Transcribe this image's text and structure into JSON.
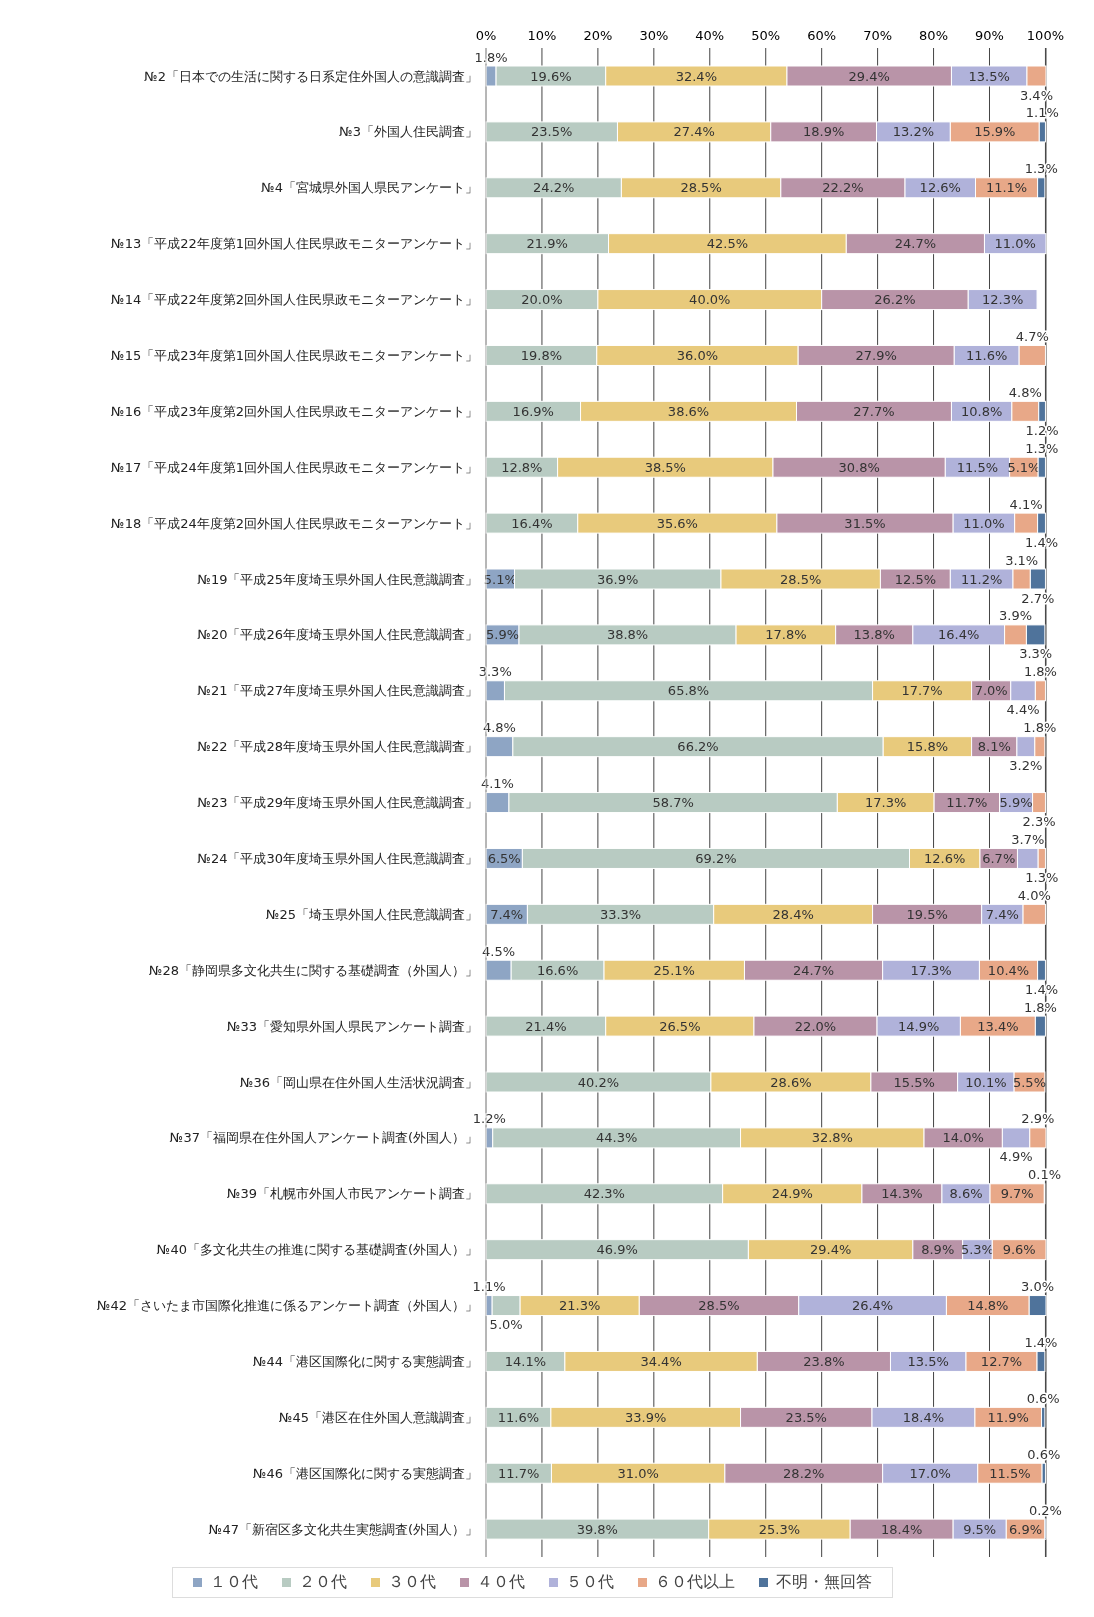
{
  "chart_data": {
    "type": "bar",
    "orientation": "horizontal",
    "stacked": true,
    "categories": [
      "№2「日本での生活に関する日系定住外国人の意識調査」",
      "№3「外国人住民調査」",
      "№4「宮城県外国人県民アンケート」",
      "№13「平成22年度第1回外国人住民県政モニターアンケート」",
      "№14「平成22年度第2回外国人住民県政モニターアンケート」",
      "№15「平成23年度第1回外国人住民県政モニターアンケート」",
      "№16「平成23年度第2回外国人住民県政モニターアンケート」",
      "№17「平成24年度第1回外国人住民県政モニターアンケート」",
      "№18「平成24年度第2回外国人住民県政モニターアンケート」",
      "№19「平成25年度埼玉県外国人住民意識調査」",
      "№20「平成26年度埼玉県外国人住民意識調査」",
      "№21「平成27年度埼玉県外国人住民意識調査」",
      "№22「平成28年度埼玉県外国人住民意識調査」",
      "№23「平成29年度埼玉県外国人住民意識調査」",
      "№24「平成30年度埼玉県外国人住民意識調査」",
      "№25「埼玉県外国人住民意識調査」",
      "№28「静岡県多文化共生に関する基礎調査（外国人）」",
      "№33「愛知県外国人県民アンケート調査」",
      "№36「岡山県在住外国人生活状況調査」",
      "№37「福岡県在住外国人アンケート調査(外国人）」",
      "№39「札幌市外国人市民アンケート調査」",
      "№40「多文化共生の推進に関する基礎調査(外国人）」",
      "№42「さいたま市国際化推進に係るアンケート調査（外国人）」",
      "№44「港区国際化に関する実態調査」",
      "№45「港区在住外国人意識調査」",
      "№46「港区国際化に関する実態調査」",
      "№47「新宿区多文化共生実態調査(外国人）」"
    ],
    "series": [
      {
        "name": "１０代",
        "color": "#8ea5c4",
        "values": [
          1.8,
          null,
          null,
          null,
          null,
          null,
          null,
          null,
          null,
          5.1,
          5.9,
          3.3,
          4.8,
          4.1,
          6.5,
          7.4,
          4.5,
          null,
          null,
          1.2,
          null,
          null,
          1.1,
          null,
          null,
          null,
          null
        ],
        "value_labels": [
          "1.8%",
          null,
          null,
          null,
          null,
          null,
          null,
          null,
          null,
          "5.1%",
          "5.9%",
          "3.3%",
          "4.8%",
          "4.1%",
          "6.5%",
          "7.4%",
          "4.5%",
          null,
          null,
          "1.2%",
          null,
          null,
          "1.1%",
          null,
          null,
          null,
          null
        ]
      },
      {
        "name": "２０代",
        "color": "#b8cbc2",
        "values": [
          19.6,
          23.5,
          24.2,
          21.9,
          20.0,
          19.8,
          16.9,
          12.8,
          16.4,
          36.9,
          38.8,
          65.8,
          66.2,
          58.7,
          69.2,
          33.3,
          16.6,
          21.4,
          40.2,
          44.3,
          42.3,
          46.9,
          5.0,
          14.1,
          11.6,
          11.7,
          39.8
        ],
        "value_labels": [
          "19.6%",
          "23.5%",
          "24.2%",
          "21.9%",
          "20.0%",
          "19.8%",
          "16.9%",
          "12.8%",
          "16.4%",
          "36.9%",
          "38.8%",
          "65.8%",
          "66.2%",
          "58.7%",
          "69.2%",
          "33.3%",
          "16.6%",
          "21.4%",
          "40.2%",
          "44.3%",
          "42.3%",
          "46.9%",
          "5.0%",
          "14.1%",
          "11.6%",
          "11.7%",
          "39.8%"
        ]
      },
      {
        "name": "３０代",
        "color": "#e8ca7c",
        "values": [
          32.4,
          27.4,
          28.5,
          42.5,
          40.0,
          36.0,
          38.6,
          38.5,
          35.6,
          28.5,
          17.8,
          17.7,
          15.8,
          17.3,
          12.6,
          28.4,
          25.1,
          26.5,
          28.6,
          32.8,
          24.9,
          29.4,
          21.3,
          34.4,
          33.9,
          31.0,
          25.3
        ],
        "value_labels": [
          "32.4%",
          "27.4%",
          "28.5%",
          "42.5%",
          "40.0%",
          "36.0%",
          "38.6%",
          "38.5%",
          "35.6%",
          "28.5%",
          "17.8%",
          "17.7%",
          "15.8%",
          "17.3%",
          "12.6%",
          "28.4%",
          "25.1%",
          "26.5%",
          "28.6%",
          "32.8%",
          "24.9%",
          "29.4%",
          "21.3%",
          "34.4%",
          "33.9%",
          "31.0%",
          "25.3%"
        ]
      },
      {
        "name": "４０代",
        "color": "#b994a8",
        "values": [
          29.4,
          18.9,
          22.2,
          24.7,
          26.2,
          27.9,
          27.7,
          30.8,
          31.5,
          12.5,
          13.8,
          7.0,
          8.1,
          11.7,
          6.7,
          19.5,
          24.7,
          22.0,
          15.5,
          14.0,
          14.3,
          8.9,
          28.5,
          23.8,
          23.5,
          28.2,
          18.4
        ],
        "value_labels": [
          "29.4%",
          "18.9%",
          "22.2%",
          "24.7%",
          "26.2%",
          "27.9%",
          "27.7%",
          "30.8%",
          "31.5%",
          "12.5%",
          "13.8%",
          "7.0%",
          "8.1%",
          "11.7%",
          "6.7%",
          "19.5%",
          "24.7%",
          "22.0%",
          "15.5%",
          "14.0%",
          "14.3%",
          "8.9%",
          "28.5%",
          "23.8%",
          "23.5%",
          "28.2%",
          "18.4%"
        ]
      },
      {
        "name": "５０代",
        "color": "#b0b2da",
        "values": [
          13.5,
          13.2,
          12.6,
          11.0,
          12.3,
          11.6,
          10.8,
          11.5,
          11.0,
          11.2,
          16.4,
          4.4,
          3.2,
          5.9,
          3.7,
          7.4,
          17.3,
          14.9,
          10.1,
          4.9,
          8.6,
          5.3,
          26.4,
          13.5,
          18.4,
          17.0,
          9.5
        ],
        "value_labels": [
          "13.5%",
          "13.2%",
          "12.6%",
          "11.0%",
          "12.3%",
          "11.6%",
          "10.8%",
          "11.5%",
          "11.0%",
          "11.2%",
          "16.4%",
          "4.4%",
          "3.2%",
          "5.9%",
          "3.7%",
          "7.4%",
          "17.3%",
          "14.9%",
          "10.1%",
          "4.9%",
          "8.6%",
          "5.3%",
          "26.4%",
          "13.5%",
          "18.4%",
          "17.0%",
          "9.5%"
        ]
      },
      {
        "name": "６０代以上",
        "color": "#e8a888",
        "values": [
          3.4,
          15.9,
          11.1,
          null,
          null,
          4.7,
          4.8,
          5.1,
          4.1,
          3.1,
          3.9,
          1.8,
          1.8,
          2.3,
          1.3,
          4.0,
          10.4,
          13.4,
          5.5,
          2.9,
          9.7,
          9.6,
          14.8,
          12.7,
          11.9,
          11.5,
          6.9
        ],
        "value_labels": [
          "3.4%",
          "15.9%",
          "11.1%",
          null,
          null,
          "4.7%",
          "4.8%",
          "5.1%",
          "4.1%",
          "3.1%",
          "3.9%",
          "1.8%",
          "1.8%",
          "2.3%",
          "1.3%",
          "4.0%",
          "10.4%",
          "13.4%",
          "5.5%",
          "2.9%",
          "9.7%",
          "9.6%",
          "14.8%",
          "12.7%",
          "11.9%",
          "11.5%",
          "6.9%"
        ]
      },
      {
        "name": "不明・無回答",
        "color": "#4f739b",
        "values": [
          null,
          1.1,
          1.3,
          null,
          null,
          null,
          1.2,
          1.3,
          1.4,
          2.7,
          3.3,
          null,
          null,
          null,
          null,
          null,
          1.4,
          1.8,
          null,
          null,
          0.1,
          null,
          3.0,
          1.4,
          0.6,
          0.6,
          0.2
        ],
        "value_labels": [
          null,
          "1.1%",
          "1.3%",
          null,
          null,
          null,
          "1.2%",
          "1.3%",
          "1.4%",
          "2.7%",
          "3.3%",
          null,
          null,
          null,
          null,
          null,
          "1.4%",
          "1.8%",
          null,
          null,
          "0.1%",
          null,
          "3.0%",
          "1.4%",
          "0.6%",
          "0.6%",
          "0.2%"
        ]
      }
    ],
    "xlim": [
      0,
      100
    ],
    "xticks": [
      {
        "value": 0,
        "label": "0%"
      },
      {
        "value": 10,
        "label": "10%"
      },
      {
        "value": 20,
        "label": "20%"
      },
      {
        "value": 30,
        "label": "30%"
      },
      {
        "value": 40,
        "label": "40%"
      },
      {
        "value": 50,
        "label": "50%"
      },
      {
        "value": 60,
        "label": "60%"
      },
      {
        "value": 70,
        "label": "70%"
      },
      {
        "value": 80,
        "label": "80%"
      },
      {
        "value": 90,
        "label": "90%"
      },
      {
        "value": 100,
        "label": "100%"
      }
    ],
    "grid": "x",
    "legend": "bottom"
  }
}
